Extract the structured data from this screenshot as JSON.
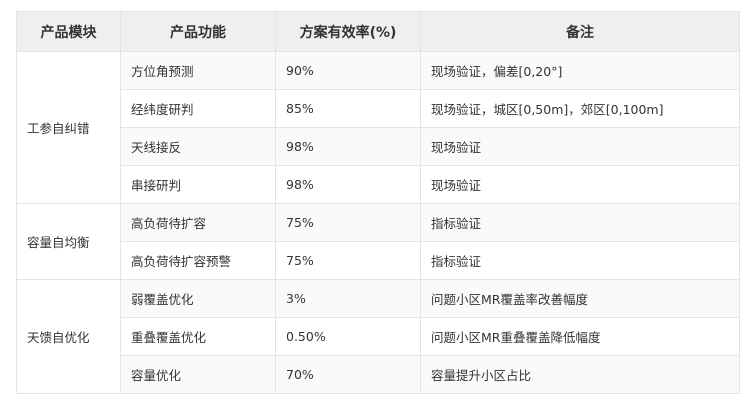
{
  "headers": [
    "产品模块",
    "产品功能",
    "方案有效率(%)",
    "备注"
  ],
  "groups": [
    {
      "module": "工参自纠错",
      "rows": [
        {
          "function": "方位角预测",
          "rate": "90%",
          "note": "现场验证，偏差[0,20°]"
        },
        {
          "function": "经纬度研判",
          "rate": "85%",
          "note": "现场验证，城区[0,50m]，郊区[0,100m]"
        },
        {
          "function": "天线接反",
          "rate": "98%",
          "note": "现场验证"
        },
        {
          "function": "串接研判",
          "rate": "98%",
          "note": "现场验证"
        }
      ]
    },
    {
      "module": "容量自均衡",
      "rows": [
        {
          "function": "高负荷待扩容",
          "rate": "75%",
          "note": "指标验证"
        },
        {
          "function": "高负荷待扩容预警",
          "rate": "75%",
          "note": "指标验证"
        }
      ]
    },
    {
      "module": "天馈自优化",
      "rows": [
        {
          "function": "弱覆盖优化",
          "rate": "3%",
          "note": "问题小区MR覆盖率改善幅度"
        },
        {
          "function": "重叠覆盖优化",
          "rate": "0.50%",
          "note": "问题小区MR重叠覆盖降低幅度"
        },
        {
          "function": "容量优化",
          "rate": "70%",
          "note": "容量提升小区占比"
        }
      ]
    }
  ]
}
